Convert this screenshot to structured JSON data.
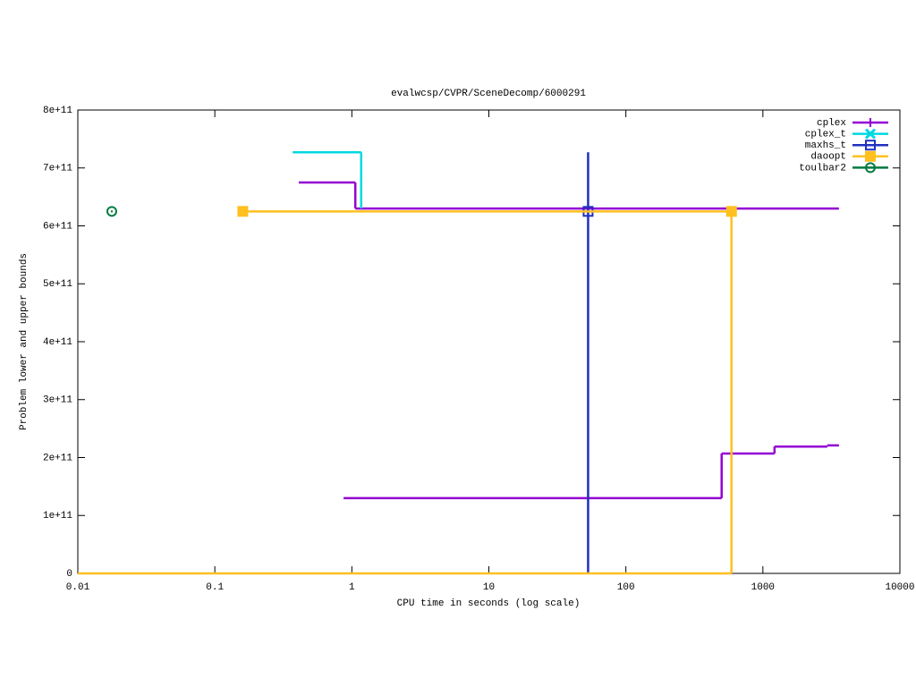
{
  "chart_data": {
    "type": "step",
    "title": "evalwcsp/CVPR/SceneDecomp/6000291",
    "x_label": "CPU time in seconds (log scale)",
    "y_label": "Problem lower and upper bounds",
    "x_log": true,
    "xlim": [
      0.01,
      10000
    ],
    "xticks": [
      0.01,
      0.1,
      1,
      10,
      100,
      1000,
      10000
    ],
    "ylim": [
      0,
      800000000000
    ],
    "yticks": [
      {
        "value": 0,
        "label": "0"
      },
      {
        "value": 100000000000,
        "label": "1e+11"
      },
      {
        "value": 200000000000,
        "label": "2e+11"
      },
      {
        "value": 300000000000,
        "label": "3e+11"
      },
      {
        "value": 400000000000,
        "label": "4e+11"
      },
      {
        "value": 500000000000,
        "label": "5e+11"
      },
      {
        "value": 600000000000,
        "label": "6e+11"
      },
      {
        "value": 700000000000,
        "label": "7e+11"
      },
      {
        "value": 800000000000,
        "label": "8e+11"
      }
    ],
    "legend": "top-right",
    "series": [
      {
        "name": "cplex",
        "color": "#9400d3",
        "marker": "plus",
        "x": [
          0.41,
          1.06,
          3590
        ],
        "values": [
          675000000000,
          630000000000,
          630000000000
        ],
        "lower_x": [
          0.87,
          500,
          1216,
          2950,
          3590
        ],
        "lower_values": [
          130000000000,
          207000000000,
          219000000000,
          221000000000,
          221000000000
        ]
      },
      {
        "name": "cplex_t",
        "color": "#00d8e0",
        "marker": "cross",
        "x": [
          0.37,
          1.17
        ],
        "values": [
          727000000000,
          630000000000
        ]
      },
      {
        "name": "maxhs_t",
        "color": "#2030c0",
        "marker": "open-square",
        "x": [
          53,
          53
        ],
        "values": [
          0,
          727000000000
        ],
        "marker_x": [
          53
        ],
        "marker_values": [
          625000000000
        ]
      },
      {
        "name": "daoopt",
        "color": "#ffc020",
        "marker": "filled-square",
        "x": [
          0.16,
          590,
          590
        ],
        "values": [
          625000000000,
          625000000000,
          0
        ],
        "lower_x": [
          0.01,
          590
        ],
        "lower_values": [
          0,
          0
        ],
        "marker_x": [
          0.16,
          590
        ],
        "marker_values": [
          625000000000,
          625000000000
        ]
      },
      {
        "name": "toulbar2",
        "color": "#007a40",
        "marker": "dot-circle",
        "marker_x": [
          0.0177
        ],
        "marker_values": [
          625000000000
        ]
      }
    ]
  }
}
